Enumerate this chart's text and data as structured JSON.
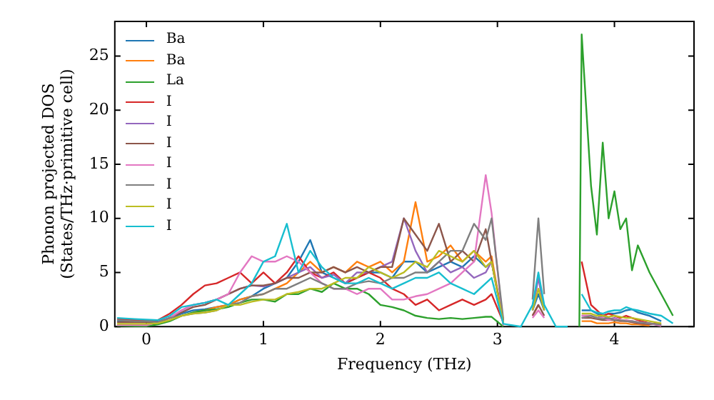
{
  "chart_data": {
    "type": "line",
    "xlabel": "Frequency (THz)",
    "ylabel": "Phonon projected DOS\n(States/THz·primitive cell)",
    "xlim": [
      -0.27,
      4.68
    ],
    "ylim": [
      0,
      28.2
    ],
    "xticks": [
      0,
      1,
      2,
      3,
      4
    ],
    "yticks": [
      0,
      5,
      10,
      15,
      20,
      25
    ],
    "legend": "top left",
    "x": [
      -0.25,
      -0.1,
      0,
      0.1,
      0.2,
      0.3,
      0.4,
      0.5,
      0.6,
      0.7,
      0.8,
      0.9,
      1.0,
      1.1,
      1.2,
      1.3,
      1.4,
      1.5,
      1.6,
      1.7,
      1.8,
      1.9,
      2.0,
      2.1,
      2.2,
      2.3,
      2.4,
      2.5,
      2.6,
      2.7,
      2.8,
      2.9,
      2.95,
      3.05,
      3.2,
      3.3,
      3.35,
      3.4,
      3.5,
      3.6,
      3.7,
      3.72,
      3.8,
      3.85,
      3.9,
      3.95,
      4.0,
      4.05,
      4.1,
      4.15,
      4.2,
      4.3,
      4.4,
      4.5
    ],
    "series": [
      {
        "name": "Ba",
        "color": "#1f77b4",
        "values": [
          0.5,
          0.5,
          0.45,
          0.5,
          0.8,
          1.2,
          1.5,
          1.6,
          1.8,
          2.0,
          2.5,
          2.8,
          3.5,
          4,
          4.5,
          6,
          8,
          5,
          4.5,
          4,
          4.5,
          5,
          5,
          4.5,
          6,
          6,
          5,
          5.5,
          6,
          5.5,
          6.5,
          5.5,
          6,
          0.5,
          null,
          1.5,
          3,
          1.5,
          null,
          null,
          null,
          1.5,
          1.5,
          1.2,
          1,
          1.2,
          1.2,
          1.3,
          1.5,
          1.6,
          1.3,
          1,
          0.5,
          null
        ]
      },
      {
        "name": "Ba",
        "color": "#ff7f0e",
        "values": [
          null,
          null,
          null,
          null,
          null,
          null,
          1.3,
          1.5,
          1.8,
          2,
          2.5,
          2.8,
          3,
          3.5,
          4,
          5,
          6,
          5,
          5.5,
          5,
          6,
          5.5,
          6,
          5,
          6,
          11.5,
          6,
          6.5,
          7.5,
          6,
          7,
          6,
          6.5,
          0.2,
          null,
          null,
          null,
          null,
          null,
          null,
          null,
          0.5,
          0.5,
          0.3,
          0.3,
          0.3,
          0.4,
          0.3,
          0.3,
          0.2,
          0.2,
          0.1,
          null,
          null
        ]
      },
      {
        "name": "La",
        "color": "#2ca02c",
        "values": [
          0.1,
          0.05,
          0.05,
          0.2,
          0.5,
          1,
          1.3,
          1.5,
          1.6,
          1.8,
          2.2,
          2.5,
          2.5,
          2.3,
          3,
          3,
          3.5,
          3.2,
          4,
          3.5,
          3.5,
          3,
          2,
          1.8,
          1.5,
          1,
          0.8,
          0.7,
          0.8,
          0.7,
          0.8,
          0.9,
          0.9,
          0,
          null,
          null,
          null,
          null,
          null,
          null,
          0,
          27,
          13,
          8.5,
          17,
          10,
          12.5,
          9,
          10,
          5.2,
          7.5,
          5,
          3,
          1
        ]
      },
      {
        "name": "I",
        "color": "#d62728",
        "values": [
          0.7,
          0.6,
          0.55,
          0.6,
          1.2,
          2,
          3,
          3.8,
          4,
          4.5,
          5,
          4,
          5,
          4,
          5,
          6.5,
          5,
          4.5,
          5,
          4,
          4.5,
          5,
          4.5,
          3.5,
          3,
          2,
          2.5,
          1.5,
          2,
          2.5,
          2,
          2.5,
          3,
          0.4,
          null,
          1,
          2,
          null,
          null,
          null,
          null,
          6,
          2,
          1.5,
          1,
          1.2,
          1,
          0.8,
          1,
          0.8,
          0.6,
          0.3,
          0.2,
          null
        ]
      },
      {
        "name": "I",
        "color": "#9467bd",
        "values": [
          0.2,
          0.2,
          0.2,
          0.4,
          0.8,
          1.5,
          2,
          2.2,
          2.5,
          3,
          3.5,
          3.8,
          3.7,
          4,
          4.5,
          5,
          5.5,
          4.5,
          4.8,
          4,
          5,
          5,
          5.5,
          6,
          10,
          7,
          5,
          6,
          5,
          5.5,
          4.5,
          5,
          6,
          0.3,
          null,
          1.5,
          4.5,
          1.5,
          null,
          null,
          null,
          1,
          1,
          0.8,
          1,
          0.7,
          0.8,
          0.6,
          0.5,
          0.5,
          0.4,
          0.3,
          0.1,
          null
        ]
      },
      {
        "name": "I",
        "color": "#8c564b",
        "values": [
          0.4,
          0.4,
          0.4,
          0.4,
          0.8,
          1.3,
          1.8,
          2,
          2.5,
          3,
          3.5,
          3.8,
          3.8,
          4,
          4.5,
          4.5,
          5,
          5,
          5.5,
          5,
          5.5,
          5,
          5.5,
          5.5,
          10,
          8.5,
          7,
          9.5,
          6,
          7,
          6,
          9,
          6,
          0.6,
          null,
          1,
          2,
          1,
          null,
          null,
          null,
          0.8,
          0.8,
          0.7,
          0.6,
          0.6,
          0.6,
          0.5,
          0.5,
          0.4,
          0.3,
          0.2,
          0.25,
          null
        ]
      },
      {
        "name": "I",
        "color": "#e377c2",
        "values": [
          0.15,
          0.15,
          0.12,
          0.4,
          0.8,
          1.5,
          2,
          2.2,
          2.5,
          3,
          5,
          6.5,
          6,
          6,
          6.5,
          6,
          5,
          4,
          3.5,
          3.5,
          3,
          3.5,
          3.5,
          2.5,
          2.5,
          2.8,
          3,
          3.5,
          4,
          5,
          6,
          14,
          10.5,
          0.1,
          null,
          0.8,
          1.5,
          0.8,
          null,
          null,
          null,
          1,
          1,
          0.8,
          0.8,
          0.6,
          0.7,
          0.6,
          0.6,
          0.5,
          0.4,
          0.3,
          0.05,
          null
        ]
      },
      {
        "name": "I",
        "color": "#7f7f7f",
        "values": [
          0.6,
          0.5,
          0.5,
          0.4,
          0.8,
          1,
          1.2,
          1.3,
          1.5,
          2,
          2.2,
          2.8,
          3,
          3.5,
          3.5,
          4,
          4.5,
          4,
          3.5,
          3.5,
          4,
          4.2,
          4,
          4.5,
          4.5,
          5,
          5,
          6,
          7,
          7,
          9.5,
          8,
          10,
          0.7,
          null,
          2.5,
          10,
          3,
          null,
          null,
          null,
          0.8,
          1,
          0.8,
          0.7,
          0.8,
          0.6,
          0.6,
          0.5,
          0.5,
          0.4,
          0.3,
          0.15,
          null
        ]
      },
      {
        "name": "I",
        "color": "#bcbd22",
        "values": [
          0.25,
          0.25,
          0.25,
          0.3,
          0.6,
          1,
          1.2,
          1.3,
          1.5,
          2,
          2,
          2.3,
          2.5,
          2.5,
          3,
          3.2,
          3.5,
          3.5,
          4,
          4.5,
          4.5,
          5.5,
          5,
          4.5,
          5,
          6,
          5.5,
          7,
          6.5,
          6,
          7,
          5.5,
          6,
          0.35,
          null,
          1.5,
          3.5,
          1.5,
          null,
          null,
          null,
          1.2,
          1.2,
          1,
          1,
          0.9,
          1,
          0.9,
          0.8,
          0.8,
          0.7,
          0.5,
          0.3,
          null
        ]
      },
      {
        "name": "I",
        "color": "#17becf",
        "values": [
          0.8,
          0.7,
          0.65,
          0.6,
          1,
          1.8,
          2,
          2.2,
          2.5,
          2,
          3,
          4,
          6,
          6.5,
          9.5,
          5,
          7,
          5.5,
          4.5,
          4,
          4,
          4.5,
          4,
          3.5,
          4,
          4.5,
          4.5,
          5,
          4,
          3.5,
          3,
          4,
          4.5,
          0.25,
          0,
          2,
          5,
          2,
          0,
          0,
          null,
          3,
          1.5,
          1.3,
          1.2,
          1.4,
          1.5,
          1.5,
          1.8,
          1.6,
          1.5,
          1.2,
          1,
          0.3
        ]
      }
    ]
  }
}
